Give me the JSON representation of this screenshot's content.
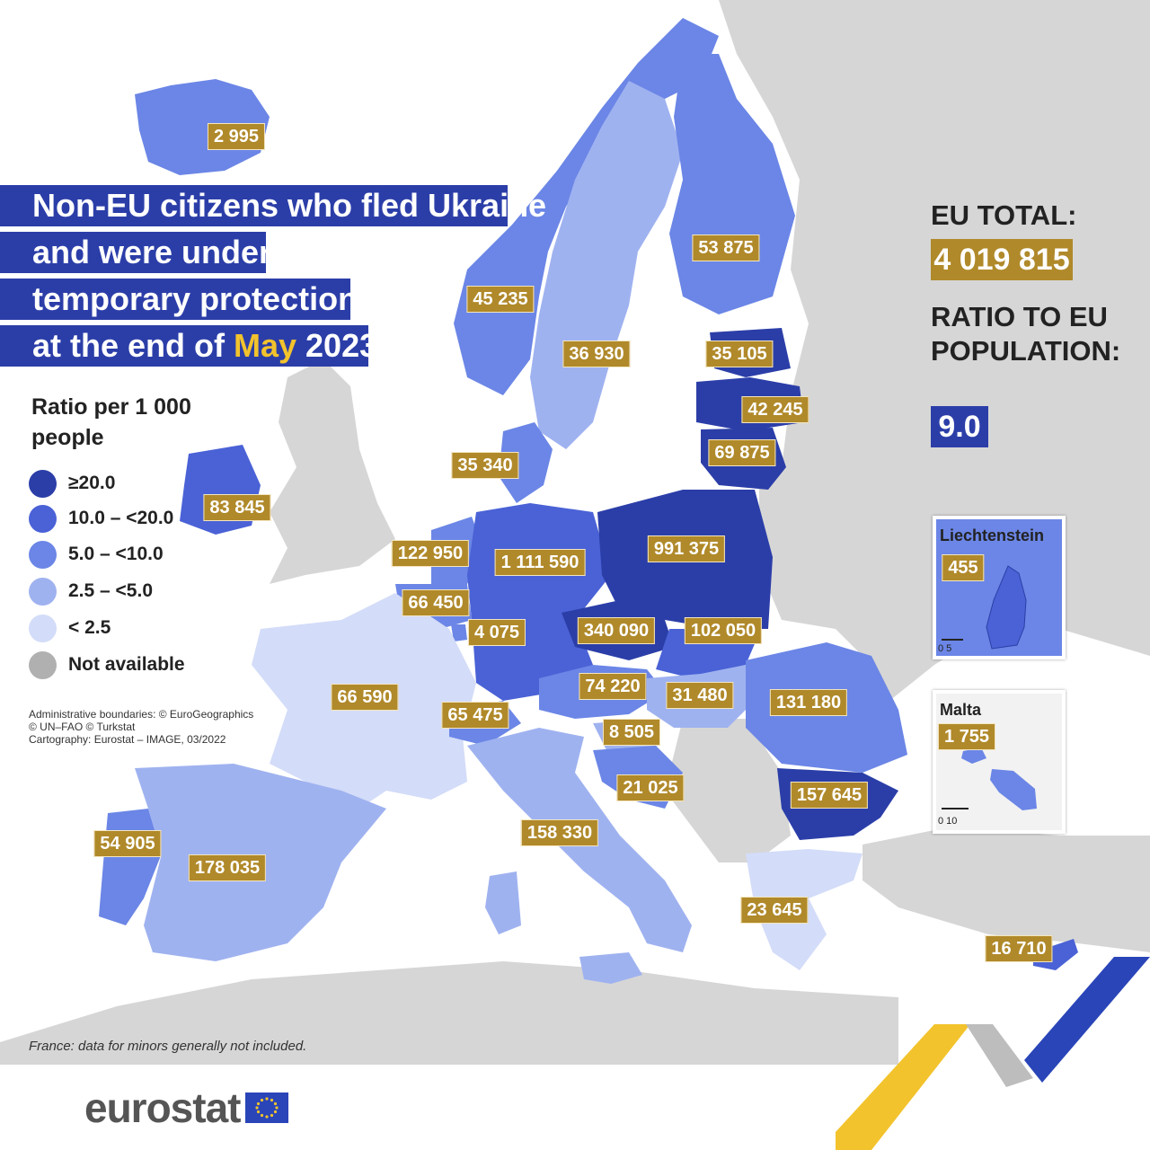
{
  "title": {
    "line1": "Non-EU citizens who fled Ukraine",
    "line2": "and were under",
    "line3": "temporary protection",
    "line4_prefix": "at the end of ",
    "line4_highlight": "May",
    "line4_suffix": " 2023"
  },
  "legend": {
    "title": "Ratio per 1 000 people",
    "items": [
      {
        "label": "≥20.0",
        "color": "#2b3ea8"
      },
      {
        "label": "10.0 – <20.0",
        "color": "#4a62d6"
      },
      {
        "label": "5.0 – <10.0",
        "color": "#6b86e6"
      },
      {
        "label": "2.5 – <5.0",
        "color": "#9fb2f0"
      },
      {
        "label": "< 2.5",
        "color": "#d3dcf8"
      },
      {
        "label": "Not available",
        "color": "#b0b0b0"
      }
    ]
  },
  "credits": "Administrative boundaries: © EuroGeographics\n© UN–FAO © Turkstat\nCartography: Eurostat – IMAGE, 03/2022",
  "footnote": "France: data for minors generally not included.",
  "logo": "eurostat",
  "eu_total": {
    "label": "EU TOTAL:",
    "value": "4 019 815"
  },
  "ratio": {
    "label": "RATIO TO EU POPULATION:",
    "value": "9.0"
  },
  "colors": {
    "title_bg": "#2b3ea8",
    "highlight": "#f2c32c",
    "value_box": "#b0892a",
    "not_available": "#d6d6d6",
    "sea": "#ffffff"
  },
  "countries": [
    {
      "name": "Iceland",
      "value": "2 995",
      "class": "5.0 – <10.0"
    },
    {
      "name": "Norway",
      "value": "45 235",
      "class": "5.0 – <10.0"
    },
    {
      "name": "Sweden",
      "value": "36 930",
      "class": "2.5 – <5.0"
    },
    {
      "name": "Finland",
      "value": "53 875",
      "class": "5.0 – <10.0"
    },
    {
      "name": "Estonia",
      "value": "35 105",
      "class": "≥20.0"
    },
    {
      "name": "Latvia",
      "value": "42 245",
      "class": "≥20.0"
    },
    {
      "name": "Lithuania",
      "value": "69 875",
      "class": "≥20.0"
    },
    {
      "name": "Denmark",
      "value": "35 340",
      "class": "5.0 – <10.0"
    },
    {
      "name": "Ireland",
      "value": "83 845",
      "class": "10.0 – <20.0"
    },
    {
      "name": "Netherlands",
      "value": "122 950",
      "class": "5.0 – <10.0"
    },
    {
      "name": "Germany",
      "value": "1 111 590",
      "class": "10.0 – <20.0"
    },
    {
      "name": "Poland",
      "value": "991 375",
      "class": "≥20.0"
    },
    {
      "name": "Belgium",
      "value": "66 450",
      "class": "5.0 – <10.0"
    },
    {
      "name": "Luxembourg",
      "value": "4 075",
      "class": "5.0 – <10.0"
    },
    {
      "name": "Czechia",
      "value": "340 090",
      "class": "≥20.0"
    },
    {
      "name": "Slovakia",
      "value": "102 050",
      "class": "10.0 – <20.0"
    },
    {
      "name": "France",
      "value": "66 590",
      "class": "< 2.5"
    },
    {
      "name": "Austria",
      "value": "74 220",
      "class": "5.0 – <10.0"
    },
    {
      "name": "Hungary",
      "value": "31 480",
      "class": "2.5 – <5.0"
    },
    {
      "name": "Romania",
      "value": "131 180",
      "class": "5.0 – <10.0"
    },
    {
      "name": "Switzerland",
      "value": "65 475",
      "class": "5.0 – <10.0"
    },
    {
      "name": "Slovenia",
      "value": "8 505",
      "class": "2.5 – <5.0"
    },
    {
      "name": "Croatia",
      "value": "21 025",
      "class": "5.0 – <10.0"
    },
    {
      "name": "Bulgaria",
      "value": "157 645",
      "class": "≥20.0"
    },
    {
      "name": "Italy",
      "value": "158 330",
      "class": "2.5 – <5.0"
    },
    {
      "name": "Portugal",
      "value": "54 905",
      "class": "5.0 – <10.0"
    },
    {
      "name": "Spain",
      "value": "178 035",
      "class": "2.5 – <5.0"
    },
    {
      "name": "Greece",
      "value": "23 645",
      "class": "< 2.5"
    },
    {
      "name": "Cyprus",
      "value": "16 710",
      "class": "10.0 – <20.0"
    }
  ],
  "insets": {
    "liechtenstein": {
      "title": "Liechtenstein",
      "value": "455",
      "scale": "0   5"
    },
    "malta": {
      "title": "Malta",
      "value": "1 755",
      "scale": "0   10"
    }
  }
}
